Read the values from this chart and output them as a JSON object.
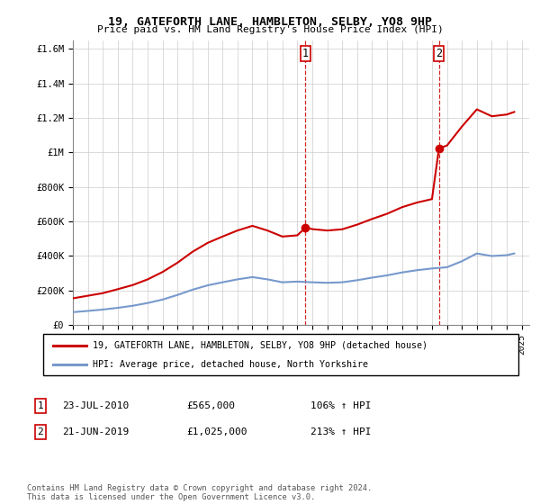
{
  "title": "19, GATEFORTH LANE, HAMBLETON, SELBY, YO8 9HP",
  "subtitle": "Price paid vs. HM Land Registry's House Price Index (HPI)",
  "ylabel_ticks": [
    "£0",
    "£200K",
    "£400K",
    "£600K",
    "£800K",
    "£1M",
    "£1.2M",
    "£1.4M",
    "£1.6M"
  ],
  "ylabel_values": [
    0,
    200000,
    400000,
    600000,
    800000,
    1000000,
    1200000,
    1400000,
    1600000
  ],
  "ylim": [
    0,
    1650000
  ],
  "x_start_year": 1995,
  "x_end_year": 2025,
  "sale1_date": "23-JUL-2010",
  "sale1_price": 565000,
  "sale1_pct": "106%",
  "sale1_x": 2010.55,
  "sale2_date": "21-JUN-2019",
  "sale2_price": 1025000,
  "sale2_pct": "213%",
  "sale2_x": 2019.47,
  "legend_line1": "19, GATEFORTH LANE, HAMBLETON, SELBY, YO8 9HP (detached house)",
  "legend_line2": "HPI: Average price, detached house, North Yorkshire",
  "footer": "Contains HM Land Registry data © Crown copyright and database right 2024.\nThis data is licensed under the Open Government Licence v3.0.",
  "property_line_color": "#cc0000",
  "hpi_line_color": "#7799cc",
  "vline_color": "#cc0000",
  "grid_color": "#cccccc",
  "hpi_data_x": [
    1995,
    1996,
    1997,
    1998,
    1999,
    2000,
    2001,
    2002,
    2003,
    2004,
    2005,
    2006,
    2007,
    2008,
    2009,
    2010,
    2011,
    2012,
    2013,
    2014,
    2015,
    2016,
    2017,
    2018,
    2019,
    2020,
    2021,
    2022,
    2023,
    2024,
    2024.5
  ],
  "hpi_data_y": [
    75000,
    82000,
    90000,
    100000,
    112000,
    128000,
    148000,
    175000,
    205000,
    230000,
    248000,
    265000,
    278000,
    265000,
    248000,
    252000,
    248000,
    245000,
    248000,
    260000,
    275000,
    288000,
    305000,
    318000,
    328000,
    335000,
    370000,
    415000,
    400000,
    405000,
    415000
  ],
  "prop_data_x_pre": [
    1995,
    1996,
    1997,
    1998,
    1999,
    2000,
    2001,
    2002,
    2003,
    2004,
    2005,
    2006,
    2007,
    2008,
    2009,
    2010,
    2010.55
  ],
  "prop_data_y_pre": [
    155000,
    170000,
    185000,
    208000,
    232000,
    265000,
    308000,
    362000,
    425000,
    476000,
    513000,
    548000,
    575000,
    548000,
    513000,
    520000,
    565000
  ],
  "prop_data_x_post": [
    2010.55,
    2011,
    2012,
    2013,
    2014,
    2015,
    2016,
    2017,
    2018,
    2019,
    2019.47
  ],
  "prop_data_y_post": [
    565000,
    556000,
    548000,
    555000,
    582000,
    615000,
    645000,
    683000,
    710000,
    730000,
    1025000
  ],
  "prop_data_x_after": [
    2019.47,
    2020,
    2021,
    2022,
    2023,
    2024,
    2024.5
  ],
  "prop_data_y_after": [
    1025000,
    1040000,
    1150000,
    1250000,
    1210000,
    1220000,
    1235000
  ]
}
